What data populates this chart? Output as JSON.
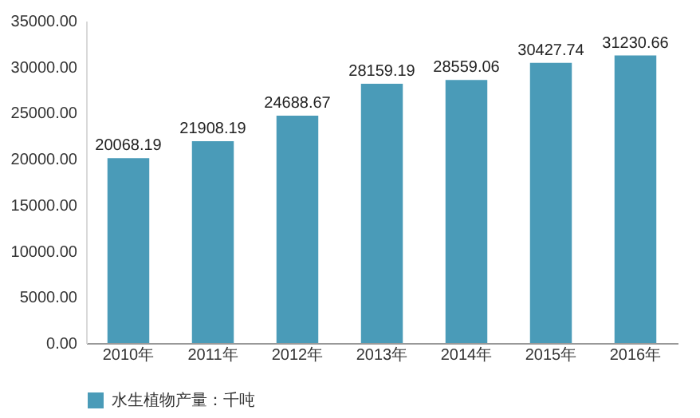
{
  "chart_data": {
    "type": "bar",
    "categories": [
      "2010年",
      "2011年",
      "2012年",
      "2013年",
      "2014年",
      "2015年",
      "2016年"
    ],
    "series": [
      {
        "name": "水生植物产量：千吨",
        "color": "#4a9bb8",
        "values": [
          20068.19,
          21908.19,
          24688.67,
          28159.19,
          28559.06,
          30427.74,
          31230.66
        ]
      }
    ],
    "ylim": [
      0,
      35000
    ],
    "yticks": [
      {
        "value": 0,
        "label": "0.00"
      },
      {
        "value": 5000,
        "label": "5000.00"
      },
      {
        "value": 10000,
        "label": "10000.00"
      },
      {
        "value": 15000,
        "label": "15000.00"
      },
      {
        "value": 20000,
        "label": "20000.00"
      },
      {
        "value": 25000,
        "label": "25000.00"
      },
      {
        "value": 30000,
        "label": "30000.00"
      },
      {
        "value": 35000,
        "label": "35000.00"
      }
    ],
    "data_labels": true,
    "legend": "bottom",
    "grid": false
  }
}
